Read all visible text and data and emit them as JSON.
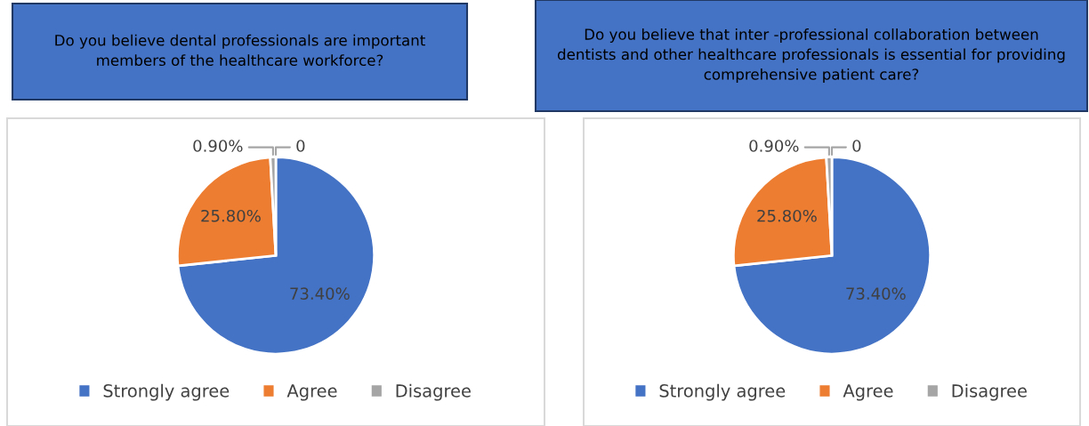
{
  "chart_data": [
    {
      "type": "pie",
      "title": "Do you believe dental professionals are important members of the healthcare workforce?",
      "categories": [
        "Strongly agree",
        "Agree",
        "Disagree",
        null
      ],
      "values": [
        73.4,
        25.8,
        0.9,
        0
      ],
      "colors": [
        "#4472c4",
        "#ed7d31",
        "#a5a5a5",
        "#ffc000"
      ],
      "value_labels": [
        "73.40%",
        "25.80%",
        "0.90%",
        "0"
      ],
      "legend": "bottom"
    },
    {
      "type": "pie",
      "title": "Do you believe that inter -professional collaboration between dentists and other healthcare professionals is essential for providing comprehensive patient care?",
      "categories": [
        "Strongly agree",
        "Agree",
        "Disagree",
        null
      ],
      "values": [
        73.4,
        25.8,
        0.9,
        0
      ],
      "colors": [
        "#4472c4",
        "#ed7d31",
        "#a5a5a5",
        "#ffc000"
      ],
      "value_labels": [
        "73.40%",
        "25.80%",
        "0.90%",
        "0"
      ],
      "legend": "bottom"
    }
  ]
}
